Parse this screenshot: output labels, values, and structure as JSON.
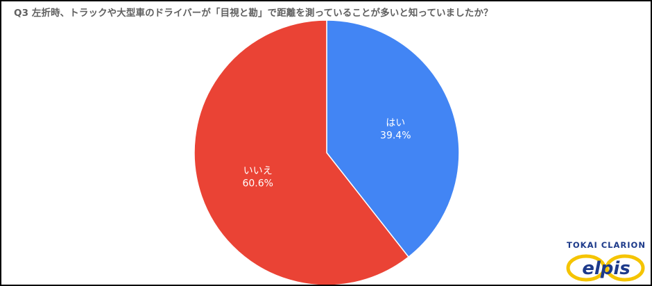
{
  "title": "Q3 左折時、トラックや大型車のドライバーが「目視と勘」で距離を測っていることが多いと知っていましたか？",
  "chart_data": {
    "type": "pie",
    "title": "Q3 左折時、トラックや大型車のドライバーが「目視と勘」で距離を測っていることが多いと知っていましたか？",
    "slices": [
      {
        "label": "はい",
        "value": 39.4,
        "value_label": "39.4%",
        "color": "#4285f4"
      },
      {
        "label": "いいえ",
        "value": 60.6,
        "value_label": "60.6%",
        "color": "#ea4335"
      }
    ],
    "start_angle_deg": 0,
    "direction": "clockwise",
    "legend": "none"
  },
  "logo": {
    "top_text": "TOKAI CLARION",
    "brand_text": "elpis",
    "colors": {
      "blue": "#1d3a8a",
      "yellow": "#f5c400"
    }
  }
}
